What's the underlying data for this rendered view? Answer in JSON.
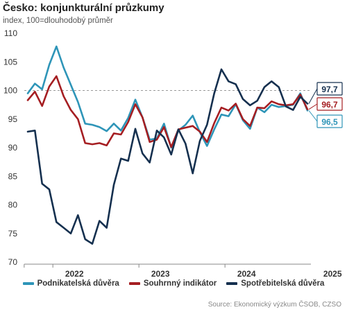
{
  "header": {
    "title": "Česko: konjunkturální průzkumy",
    "subtitle": "index, 100=dlouhodobý průměr"
  },
  "source": "Source: Ekonomický výzkum ČSOB, CZSO",
  "colors": {
    "podnikatelska": "#2e95b8",
    "souhrnny": "#a51e22",
    "spotrebitelska": "#15304f",
    "reference": "#999999"
  },
  "chart_data": {
    "type": "line",
    "x_start": "2021-09",
    "x_labels": [
      "2022",
      "2023",
      "2024",
      "2025"
    ],
    "x_label_positions": [
      6.5,
      18.5,
      30.5,
      42.5
    ],
    "y_ticks": [
      70,
      75,
      80,
      85,
      90,
      95,
      100,
      105,
      110
    ],
    "ylim": [
      70,
      110
    ],
    "reference_line": 100,
    "grid": false,
    "legend_position": "bottom",
    "series": [
      {
        "name": "Podnikatelská důvěra",
        "color_key": "podnikatelska",
        "end_label": "96,5",
        "values": [
          99.5,
          101.2,
          100.2,
          104.5,
          107.7,
          104.0,
          101.0,
          98.0,
          94.2,
          94.0,
          93.6,
          92.9,
          94.2,
          93.0,
          95.2,
          98.4,
          95.3,
          91.4,
          91.6,
          94.2,
          90.0,
          93.0,
          94.0,
          95.6,
          92.7,
          90.3,
          93.2,
          95.8,
          95.5,
          97.6,
          94.8,
          93.3,
          97.0,
          96.2,
          97.5,
          97.1,
          97.3,
          97.5,
          99.5,
          96.5
        ]
      },
      {
        "name": "Souhrnný indikátor",
        "color_key": "souhrnny",
        "end_label": "96,7",
        "values": [
          98.3,
          99.8,
          97.3,
          100.7,
          102.5,
          99.0,
          96.6,
          95.0,
          90.8,
          90.6,
          90.8,
          90.4,
          92.5,
          92.3,
          94.5,
          97.6,
          95.3,
          91.0,
          91.4,
          93.6,
          90.1,
          93.2,
          93.5,
          93.8,
          92.8,
          91.0,
          94.3,
          97.0,
          96.5,
          97.7,
          95.0,
          93.8,
          97.0,
          96.9,
          98.1,
          97.6,
          97.4,
          97.6,
          99.3,
          96.7
        ]
      },
      {
        "name": "Spotřebitelská důvěra",
        "color_key": "spotrebitelska",
        "end_label": "97,7",
        "values": [
          92.8,
          93.0,
          83.7,
          82.7,
          77.0,
          76.0,
          75.0,
          78.2,
          74.0,
          73.2,
          77.2,
          76.0,
          83.5,
          88.1,
          87.7,
          93.3,
          89.0,
          87.4,
          93.0,
          91.8,
          88.8,
          93.2,
          90.7,
          85.5,
          91.2,
          94.0,
          99.5,
          103.7,
          101.6,
          101.1,
          98.5,
          97.4,
          98.2,
          100.6,
          101.6,
          100.6,
          97.2,
          96.6,
          98.9,
          97.7
        ]
      }
    ]
  }
}
